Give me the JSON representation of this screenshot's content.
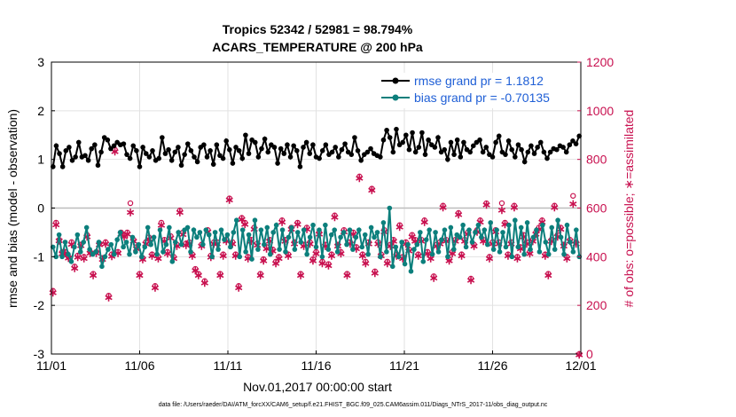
{
  "chart_data": {
    "type": "line",
    "title_line1": "Tropics 52342 / 52981 = 98.794%",
    "title_line2": "ACARS_TEMPERATURE @ 200 hPa",
    "xlabel": "Nov.01,2017 00:00:00 start",
    "ylabel_left": "rmse and bias (model - observation)",
    "ylabel_right": "# of obs: o=possible; ∗=assimilated",
    "x_ticks": [
      "11/01",
      "11/06",
      "11/11",
      "11/16",
      "11/21",
      "11/26",
      "12/01"
    ],
    "x_tick_days": [
      0,
      5,
      10,
      15,
      20,
      25,
      30
    ],
    "x_range_days": [
      0,
      30
    ],
    "y_left_range": [
      -3,
      3
    ],
    "y_left_ticks": [
      "-3",
      "-2",
      "-1",
      "0",
      "1",
      "2",
      "3"
    ],
    "y_right_range": [
      0,
      1200
    ],
    "y_right_ticks": [
      "0",
      "200",
      "400",
      "600",
      "800",
      "1000",
      "1200"
    ],
    "grid": true,
    "legend_position": "top-right",
    "colors": {
      "rmse": "#000000",
      "bias": "#0c7f7c",
      "obs": "#c8104f",
      "legend_text": "#1f5fd6"
    },
    "series": [
      {
        "name": "rmse grand pr = 1.1812",
        "values": [
          0.85,
          1.28,
          1.12,
          0.85,
          1.18,
          1.25,
          0.98,
          1.05,
          1.35,
          1.05,
          1.08,
          0.98,
          1.22,
          1.3,
          0.88,
          1.15,
          1.45,
          1.4,
          1.22,
          1.28,
          1.35,
          1.3,
          1.32,
          1.1,
          1.02,
          1.28,
          1.18,
          0.85,
          1.25,
          1.12,
          1.05,
          1.18,
          0.98,
          1.02,
          1.45,
          1.12,
          1.2,
          0.98,
          1.15,
          1.25,
          0.88,
          1.1,
          1.32,
          1.18,
          1.05,
          0.95,
          1.25,
          1.3,
          1.05,
          1.18,
          0.9,
          1.3,
          1.08,
          1.02,
          1.38,
          1.2,
          0.92,
          1.25,
          1.18,
          1.02,
          1.5,
          1.12,
          1.4,
          1.35,
          1.05,
          1.22,
          1.42,
          1.15,
          1.3,
          1.25,
          0.92,
          1.22,
          1.12,
          1.3,
          1.05,
          1.28,
          1.18,
          0.85,
          1.25,
          1.35,
          1.12,
          1.3,
          1.05,
          1.02,
          1.18,
          1.3,
          1.1,
          1.15,
          1.25,
          1.05,
          1.2,
          1.32,
          1.15,
          1.1,
          1.45,
          1.18,
          0.98,
          1.1,
          1.15,
          1.22,
          1.12,
          1.08,
          1.05,
          1.4,
          1.6,
          1.45,
          1.15,
          1.62,
          1.3,
          1.35,
          1.5,
          1.2,
          1.55,
          1.15,
          1.25,
          1.55,
          1.1,
          1.4,
          1.3,
          1.25,
          1.45,
          1.15,
          1.2,
          1.0,
          1.35,
          1.1,
          1.4,
          1.05,
          1.35,
          1.2,
          1.15,
          1.28,
          1.35,
          1.4,
          1.15,
          1.25,
          1.1,
          1.05,
          1.35,
          1.48,
          1.15,
          1.1,
          1.38,
          1.2,
          1.05,
          1.3,
          1.2,
          0.95,
          1.15,
          1.28,
          1.12,
          1.25,
          1.35,
          1.15,
          1.02,
          1.15,
          1.22,
          1.2,
          1.28,
          1.25,
          1.15,
          1.3,
          1.38,
          1.32,
          1.48
        ]
      },
      {
        "name": "bias grand pr = -0.70135",
        "values": [
          -0.8,
          -1.0,
          -0.55,
          -1.0,
          -0.7,
          -0.95,
          -1.1,
          -0.8,
          -0.55,
          -0.9,
          -0.7,
          -0.4,
          -0.85,
          -0.95,
          -0.9,
          -0.7,
          -1.2,
          -1.0,
          -0.85,
          -0.75,
          -0.95,
          -0.65,
          -0.5,
          -0.8,
          -0.7,
          -0.95,
          -0.6,
          -0.9,
          -0.75,
          -1.0,
          -0.8,
          -0.4,
          -0.75,
          -0.6,
          -0.95,
          -0.45,
          -0.9,
          -0.75,
          -0.4,
          -1.1,
          -0.7,
          -0.5,
          -0.75,
          -0.45,
          -0.4,
          -0.9,
          -0.45,
          -0.6,
          -0.5,
          -0.75,
          -0.45,
          -0.55,
          -1.0,
          -0.5,
          -0.85,
          -0.45,
          -0.65,
          -0.55,
          -0.8,
          -0.5,
          -0.25,
          -1.0,
          -0.45,
          -0.9,
          -0.55,
          -1.05,
          -0.25,
          -0.85,
          -0.45,
          -0.75,
          -0.4,
          -0.95,
          -0.5,
          -0.35,
          -0.85,
          -0.45,
          -0.9,
          -0.6,
          -0.4,
          -0.85,
          -0.5,
          -0.7,
          -0.45,
          -0.95,
          -0.6,
          -0.35,
          -0.8,
          -0.45,
          -1.0,
          -0.35,
          -0.85,
          -0.55,
          -0.45,
          -0.9,
          -0.6,
          -0.5,
          -0.75,
          -0.45,
          -0.85,
          -0.6,
          -0.45,
          -0.8,
          -0.55,
          -0.95,
          -0.4,
          -0.6,
          -0.5,
          -1.0,
          -0.3,
          -0.9,
          0.0,
          -1.2,
          -0.8,
          -1.0,
          -0.7,
          -1.15,
          -0.75,
          -1.3,
          -0.85,
          -0.75,
          -0.5,
          -1.1,
          -0.65,
          -0.45,
          -0.95,
          -0.5,
          -0.9,
          -0.65,
          -0.45,
          -1.0,
          -0.4,
          -0.85,
          -0.55,
          -0.6,
          -0.35,
          -0.8,
          -0.45,
          -0.7,
          -0.5,
          -0.35,
          -0.6,
          -0.45,
          -0.75,
          -0.3,
          -0.85,
          -0.45,
          -0.9,
          -0.5,
          -0.8,
          -0.35,
          -1.0,
          -0.25,
          -0.8,
          -0.4,
          -0.95,
          -0.3,
          -0.85,
          -0.6,
          -0.45,
          -0.9,
          -0.35,
          -0.7,
          -0.95,
          -0.4,
          -0.85,
          -0.25,
          -0.6,
          -0.95,
          -0.35,
          -0.7,
          -0.9,
          -0.45,
          -1.0
        ]
      },
      {
        "name": "observations possible",
        "values": [
          260,
          540,
          470,
          420,
          420,
          400,
          460,
          360,
          405,
          450,
          400,
          490,
          420,
          330,
          420,
          455,
          395,
          460,
          240,
          410,
          840,
          420,
          500,
          490,
          500,
          620,
          470,
          440,
          330,
          395,
          460,
          480,
          410,
          280,
          400,
          540,
          470,
          420,
          485,
          400,
          450,
          590,
          500,
          455,
          460,
          410,
          350,
          330,
          450,
          300,
          510,
          405,
          460,
          460,
          330,
          410,
          470,
          640,
          460,
          410,
          280,
          560,
          540,
          400,
          470,
          520,
          455,
          330,
          390,
          440,
          470,
          430,
          380,
          400,
          550,
          470,
          410,
          520,
          460,
          540,
          330,
          450,
          520,
          460,
          390,
          420,
          500,
          380,
          450,
          370,
          410,
          570,
          450,
          420,
          510,
          330,
          460,
          500,
          440,
          730,
          410,
          380,
          460,
          680,
          340,
          460,
          410,
          510,
          380,
          450,
          470,
          410,
          530,
          400,
          460,
          430,
          490,
          470,
          410,
          470,
          550,
          420,
          400,
          320,
          450,
          460,
          610,
          470,
          390,
          420,
          470,
          580,
          410,
          470,
          500,
          310,
          450,
          510,
          550,
          470,
          620,
          400,
          460,
          510,
          460,
          620,
          540,
          410,
          460,
          610,
          400,
          440,
          490,
          460,
          420,
          470,
          500,
          520,
          550,
          410,
          330,
          470,
          610,
          490,
          520,
          450,
          400,
          470,
          650,
          460,
          0
        ]
      },
      {
        "name": "observations assimilated",
        "values": [
          256,
          535,
          468,
          416,
          418,
          398,
          455,
          356,
          402,
          448,
          396,
          485,
          418,
          326,
          417,
          452,
          392,
          456,
          236,
          405,
          835,
          418,
          496,
          486,
          496,
          585,
          466,
          436,
          326,
          392,
          456,
          476,
          406,
          276,
          396,
          532,
          466,
          416,
          480,
          396,
          446,
          585,
          495,
          450,
          456,
          406,
          346,
          326,
          446,
          296,
          506,
          401,
          456,
          456,
          326,
          406,
          466,
          636,
          456,
          406,
          276,
          556,
          536,
          396,
          466,
          516,
          451,
          326,
          386,
          436,
          466,
          426,
          376,
          396,
          546,
          466,
          406,
          516,
          456,
          536,
          326,
          446,
          516,
          456,
          386,
          416,
          496,
          376,
          446,
          366,
          406,
          566,
          446,
          416,
          506,
          326,
          456,
          496,
          436,
          726,
          406,
          376,
          456,
          676,
          336,
          456,
          406,
          506,
          376,
          446,
          466,
          406,
          526,
          396,
          456,
          426,
          486,
          466,
          406,
          466,
          546,
          416,
          396,
          316,
          446,
          456,
          606,
          466,
          386,
          416,
          466,
          576,
          406,
          466,
          496,
          306,
          446,
          506,
          546,
          466,
          616,
          396,
          456,
          506,
          456,
          595,
          536,
          406,
          456,
          606,
          396,
          436,
          486,
          456,
          416,
          466,
          496,
          516,
          546,
          406,
          326,
          466,
          606,
          486,
          516,
          446,
          396,
          466,
          620,
          456,
          0
        ]
      }
    ],
    "footnote": "data file: /Users/raeder/DAI/ATM_forcXX/CAM6_setup/f.e21.FHIST_BGC.f09_025.CAM6assim.011/Diags_NTrS_2017-11/obs_diag_output.nc"
  }
}
